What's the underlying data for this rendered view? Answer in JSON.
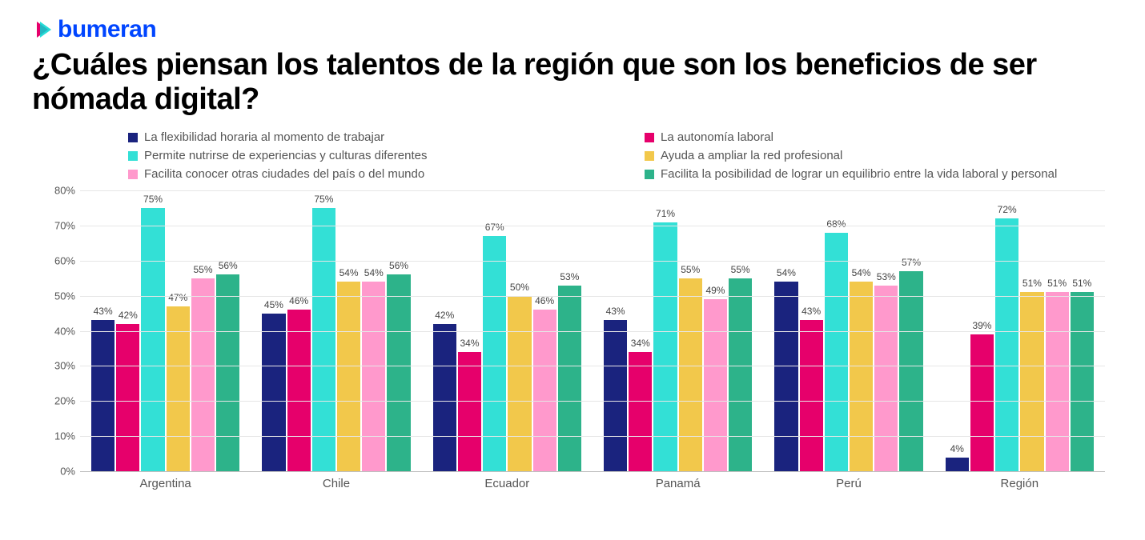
{
  "brand": {
    "name": "bumeran",
    "text_color": "#0045ff",
    "mark_color_1": "#e6006b",
    "mark_color_2": "#00d6d0"
  },
  "title": "¿Cuáles piensan los talentos de la región que son los beneficios de ser nómada digital?",
  "chart": {
    "type": "bar",
    "y_axis": {
      "min": 0,
      "max": 80,
      "tick_step": 10,
      "suffix": "%"
    },
    "grid_color": "#e6e6e6",
    "baseline_color": "#bfbfbf",
    "axis_label_color": "#555555",
    "axis_fontsize": 13,
    "category_fontsize": 15,
    "data_label_fontsize": 12,
    "background_color": "#ffffff",
    "series": [
      {
        "label": "La flexibilidad horaria al momento de trabajar",
        "color": "#1a237e"
      },
      {
        "label": "La autonomía laboral",
        "color": "#e6006b"
      },
      {
        "label": "Permite nutrirse de experiencias y culturas diferentes",
        "color": "#33e0d6"
      },
      {
        "label": "Ayuda a ampliar la red profesional",
        "color": "#f2c84b"
      },
      {
        "label": "Facilita conocer otras ciudades del país o del mundo",
        "color": "#ff99cc"
      },
      {
        "label": "Facilita la posibilidad de lograr un equilibrio entre la vida laboral y personal",
        "color": "#2db38a"
      }
    ],
    "categories": [
      {
        "name": "Argentina",
        "values": [
          43,
          42,
          75,
          47,
          55,
          56
        ]
      },
      {
        "name": "Chile",
        "values": [
          45,
          46,
          75,
          54,
          54,
          56
        ]
      },
      {
        "name": "Ecuador",
        "values": [
          42,
          34,
          67,
          50,
          46,
          53
        ]
      },
      {
        "name": "Panamá",
        "values": [
          43,
          34,
          71,
          55,
          49,
          55
        ]
      },
      {
        "name": "Perú",
        "values": [
          54,
          43,
          68,
          54,
          53,
          57
        ]
      },
      {
        "name": "Región",
        "values": [
          4,
          39,
          72,
          51,
          51,
          51
        ]
      }
    ]
  }
}
